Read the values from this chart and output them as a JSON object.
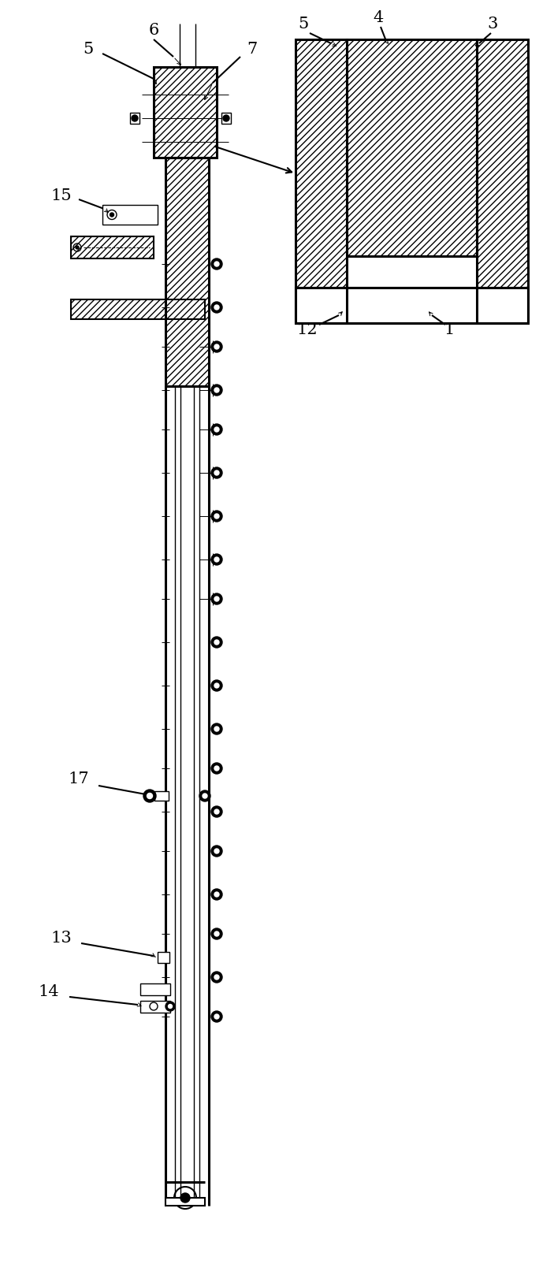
{
  "fig_width": 7.03,
  "fig_height": 16.04,
  "bg_color": "#ffffff"
}
